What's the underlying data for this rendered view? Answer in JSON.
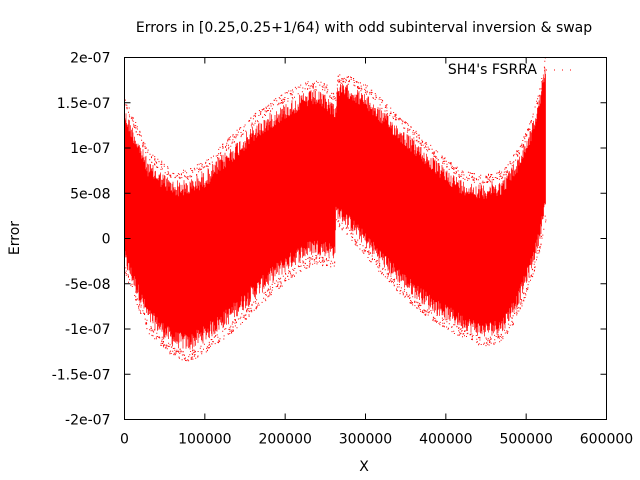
{
  "chart_data": {
    "type": "scatter",
    "title": "Errors in [0.25,0.25+1/64) with odd subinterval inversion & swap",
    "xlabel": "X",
    "ylabel": "Error",
    "xlim": [
      0,
      600000
    ],
    "ylim": [
      -2e-07,
      2e-07
    ],
    "x_ticks": [
      0,
      100000,
      200000,
      300000,
      400000,
      500000,
      600000
    ],
    "x_tick_labels": [
      "0",
      "100000",
      "200000",
      "300000",
      "400000",
      "500000",
      "600000"
    ],
    "y_ticks": [
      -2e-07,
      -1.5e-07,
      -1e-07,
      -5e-08,
      0,
      5e-08,
      1e-07,
      1.5e-07,
      2e-07
    ],
    "y_tick_labels": [
      "-2e-07",
      "-1.5e-07",
      "-1e-07",
      "-5e-08",
      "0",
      "5e-08",
      "1e-07",
      "1.5e-07",
      "2e-07"
    ],
    "grid": false,
    "legend_placement": "top-right",
    "series": [
      {
        "name": "SH4's FSRRA",
        "color": "#ff0000",
        "x_range": [
          0,
          524288
        ],
        "upper_envelope": {
          "x": [
            0,
            30000,
            60000,
            80000,
            100000,
            130000,
            160000,
            190000,
            220000,
            235000,
            250000,
            262000,
            263000,
            265000,
            280000,
            300000,
            330000,
            360000,
            390000,
            420000,
            445000,
            470000,
            490000,
            505000,
            515000,
            524288
          ],
          "y": [
            1.45e-07,
            8.5e-08,
            6.5e-08,
            6.5e-08,
            7.5e-08,
            1e-07,
            1.25e-07,
            1.45e-07,
            1.6e-07,
            1.65e-07,
            1.6e-07,
            1.5e-07,
            1.45e-07,
            1.72e-07,
            1.7e-07,
            1.6e-07,
            1.35e-07,
            1.1e-07,
            8.5e-08,
            6.5e-08,
            6e-08,
            6.5e-08,
            9e-08,
            1.2e-07,
            1.5e-07,
            1.95e-07
          ]
        },
        "lower_envelope": {
          "x": [
            0,
            30000,
            60000,
            80000,
            100000,
            130000,
            160000,
            190000,
            220000,
            235000,
            250000,
            262000,
            263000,
            265000,
            280000,
            300000,
            330000,
            360000,
            390000,
            420000,
            445000,
            470000,
            490000,
            505000,
            515000,
            524288
          ],
          "y": [
            -3e-08,
            -9.5e-08,
            -1.2e-07,
            -1.25e-07,
            -1.15e-07,
            -9.5e-08,
            -7e-08,
            -4.5e-08,
            -2.5e-08,
            -1.8e-08,
            -2e-08,
            -2.3e-08,
            2.3e-08,
            2.2e-08,
            1e-08,
            -1e-08,
            -4e-08,
            -6.5e-08,
            -8.5e-08,
            -1e-07,
            -1.1e-07,
            -1.05e-07,
            -7.5e-08,
            -4e-08,
            -1e-08,
            3e-08
          ]
        }
      }
    ]
  }
}
